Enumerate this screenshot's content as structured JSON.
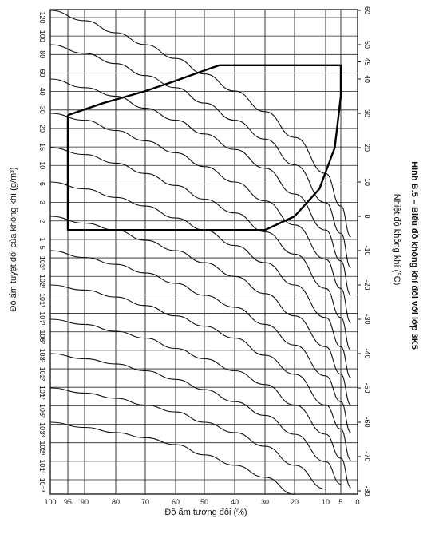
{
  "chart_data": {
    "type": "line",
    "title": "",
    "caption": "Hình B.5 – Biểu đồ không khí đối với lớp 3K5",
    "xlabel": "Độ ẩm tương đối (%)",
    "ylabel_left": "Độ ẩm tuyệt đối của không khí (g/m³)",
    "ylabel_right": "Nhiệt độ không khí (°C)",
    "xlim": [
      100,
      0
    ],
    "x_ticks": [
      "100",
      "95",
      "90",
      "80",
      "70",
      "60",
      "50",
      "40",
      "30",
      "20",
      "10",
      "5",
      "0"
    ],
    "y_left_ticks": [
      "120",
      "100",
      "80",
      "60",
      "40",
      "30",
      "20",
      "15",
      "10",
      "6",
      "3",
      "2",
      "1",
      "5 · 10⁻¹",
      "3 · 10⁻¹",
      "2 · 10⁻¹",
      "1 · 10⁻¹",
      "7 · 10⁻²",
      "6 · 10⁻²",
      "3 · 10⁻²",
      "2 · 10⁻²",
      "1 · 10⁻²",
      "6 · 10⁻³",
      "3 · 10⁻³",
      "2 · 10⁻³",
      "1 · 10⁻³"
    ],
    "y_right_ticks": [
      "60",
      "50",
      "45",
      "40",
      "30",
      "20",
      "10",
      "0",
      "-10",
      "-20",
      "-30",
      "-40",
      "-50",
      "-60",
      "-70",
      "-80"
    ],
    "series": [
      {
        "values": [
          [
            100,
            60
          ],
          [
            90,
            57
          ],
          [
            80,
            53.5
          ],
          [
            70,
            50
          ],
          [
            60,
            46
          ],
          [
            50,
            41.5
          ],
          [
            40,
            36.5
          ],
          [
            30,
            30.5
          ],
          [
            20,
            23
          ],
          [
            10,
            12.5
          ],
          [
            5,
            3
          ],
          [
            2,
            -6
          ]
        ]
      },
      {
        "values": [
          [
            100,
            50
          ],
          [
            90,
            47.5
          ],
          [
            80,
            44.5
          ],
          [
            70,
            41
          ],
          [
            60,
            37.5
          ],
          [
            50,
            33
          ],
          [
            40,
            28
          ],
          [
            30,
            22.5
          ],
          [
            20,
            15
          ],
          [
            10,
            4
          ],
          [
            5,
            -5
          ],
          [
            2,
            -15
          ]
        ]
      },
      {
        "values": [
          [
            100,
            40
          ],
          [
            90,
            37.5
          ],
          [
            80,
            35
          ],
          [
            70,
            31.5
          ],
          [
            60,
            28
          ],
          [
            50,
            24
          ],
          [
            40,
            19.5
          ],
          [
            30,
            14
          ],
          [
            20,
            6.5
          ],
          [
            10,
            -4
          ],
          [
            5,
            -13
          ],
          [
            2,
            -23
          ]
        ]
      },
      {
        "values": [
          [
            100,
            30
          ],
          [
            90,
            28
          ],
          [
            80,
            25
          ],
          [
            70,
            22
          ],
          [
            60,
            18.5
          ],
          [
            50,
            14.5
          ],
          [
            40,
            10
          ],
          [
            30,
            4.5
          ],
          [
            20,
            -2.5
          ],
          [
            10,
            -12.5
          ],
          [
            5,
            -21
          ],
          [
            2,
            -31
          ]
        ]
      },
      {
        "values": [
          [
            100,
            20
          ],
          [
            90,
            18
          ],
          [
            80,
            15.5
          ],
          [
            70,
            12.5
          ],
          [
            60,
            9
          ],
          [
            50,
            5
          ],
          [
            40,
            1
          ],
          [
            30,
            -4.5
          ],
          [
            20,
            -11
          ],
          [
            10,
            -21
          ],
          [
            5,
            -29.5
          ],
          [
            2,
            -39
          ]
        ]
      },
      {
        "values": [
          [
            100,
            10
          ],
          [
            90,
            8
          ],
          [
            80,
            5.5
          ],
          [
            70,
            3
          ],
          [
            60,
            -0.5
          ],
          [
            50,
            -4
          ],
          [
            40,
            -8.5
          ],
          [
            30,
            -13.5
          ],
          [
            20,
            -20
          ],
          [
            10,
            -29.5
          ],
          [
            5,
            -38
          ],
          [
            2,
            -47
          ]
        ]
      },
      {
        "values": [
          [
            100,
            0
          ],
          [
            90,
            -2
          ],
          [
            80,
            -4
          ],
          [
            70,
            -7
          ],
          [
            60,
            -10
          ],
          [
            50,
            -13.5
          ],
          [
            40,
            -17.5
          ],
          [
            30,
            -22.5
          ],
          [
            20,
            -29
          ],
          [
            10,
            -38
          ],
          [
            5,
            -46
          ],
          [
            2,
            -55
          ]
        ]
      },
      {
        "values": [
          [
            100,
            -10
          ],
          [
            90,
            -12
          ],
          [
            80,
            -14
          ],
          [
            70,
            -16.5
          ],
          [
            60,
            -19.5
          ],
          [
            50,
            -23
          ],
          [
            40,
            -26.5
          ],
          [
            30,
            -31.5
          ],
          [
            20,
            -37.5
          ],
          [
            10,
            -46.5
          ],
          [
            5,
            -54
          ],
          [
            2,
            -63
          ]
        ]
      },
      {
        "values": [
          [
            100,
            -20
          ],
          [
            90,
            -21.5
          ],
          [
            80,
            -23.5
          ],
          [
            70,
            -26
          ],
          [
            60,
            -29
          ],
          [
            50,
            -32
          ],
          [
            40,
            -35.5
          ],
          [
            30,
            -40.5
          ],
          [
            20,
            -46
          ],
          [
            10,
            -55
          ],
          [
            5,
            -62
          ],
          [
            2,
            -71
          ]
        ]
      },
      {
        "values": [
          [
            100,
            -30
          ],
          [
            90,
            -31.5
          ],
          [
            80,
            -33.5
          ],
          [
            70,
            -35.5
          ],
          [
            60,
            -38.5
          ],
          [
            50,
            -41.5
          ],
          [
            40,
            -45
          ],
          [
            30,
            -49
          ],
          [
            20,
            -55
          ],
          [
            10,
            -63.5
          ],
          [
            5,
            -70.5
          ],
          [
            2,
            -79
          ]
        ]
      },
      {
        "values": [
          [
            100,
            -40
          ],
          [
            90,
            -41.5
          ],
          [
            80,
            -43
          ],
          [
            70,
            -45
          ],
          [
            60,
            -47.5
          ],
          [
            50,
            -50.5
          ],
          [
            40,
            -54
          ],
          [
            30,
            -58
          ],
          [
            20,
            -63.5
          ],
          [
            10,
            -71.5
          ],
          [
            5,
            -78
          ]
        ]
      },
      {
        "values": [
          [
            100,
            -50
          ],
          [
            90,
            -51.5
          ],
          [
            80,
            -53
          ],
          [
            70,
            -55
          ],
          [
            60,
            -57
          ],
          [
            50,
            -60
          ],
          [
            40,
            -63
          ],
          [
            30,
            -67
          ],
          [
            20,
            -72.5
          ],
          [
            10,
            -79.5
          ]
        ]
      },
      {
        "values": [
          [
            100,
            -60
          ],
          [
            90,
            -61.5
          ],
          [
            80,
            -63
          ],
          [
            70,
            -64.5
          ],
          [
            60,
            -66.5
          ],
          [
            50,
            -69.5
          ],
          [
            40,
            -72.5
          ],
          [
            30,
            -76
          ],
          [
            20,
            -81
          ]
        ]
      }
    ],
    "region": [
      [
        95,
        29.5
      ],
      [
        84,
        33
      ],
      [
        70,
        36.5
      ],
      [
        60,
        39.5
      ],
      [
        50,
        42.5
      ],
      [
        45,
        44
      ],
      [
        10,
        44
      ],
      [
        5,
        44
      ],
      [
        5,
        35
      ],
      [
        7,
        20
      ],
      [
        12,
        8
      ],
      [
        20,
        0
      ],
      [
        30,
        -4
      ],
      [
        45,
        -4
      ],
      [
        95,
        -4
      ],
      [
        95,
        29.5
      ]
    ],
    "grid": true
  }
}
